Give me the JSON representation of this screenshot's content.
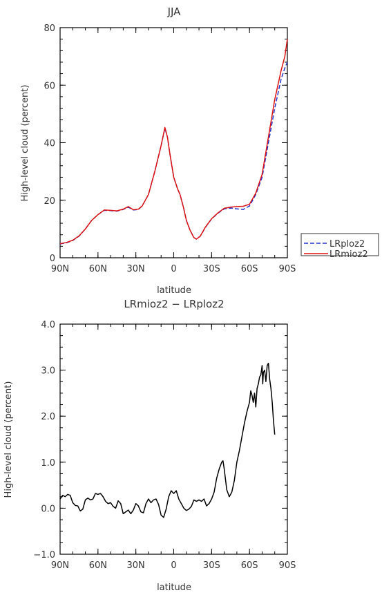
{
  "chart_data": [
    {
      "type": "line",
      "title": "JJA",
      "xlabel": "latitude",
      "ylabel": "High-level cloud (percent)",
      "xlim": [
        90,
        -90
      ],
      "ylim": [
        0,
        80
      ],
      "xticks": [
        {
          "v": 90,
          "label": "90N"
        },
        {
          "v": 60,
          "label": "60N"
        },
        {
          "v": 30,
          "label": "30N"
        },
        {
          "v": 0,
          "label": "0"
        },
        {
          "v": -30,
          "label": "30S"
        },
        {
          "v": -60,
          "label": "60S"
        },
        {
          "v": -90,
          "label": "90S"
        }
      ],
      "yticks": [
        {
          "v": 0,
          "label": "0"
        },
        {
          "v": 20,
          "label": "20"
        },
        {
          "v": 40,
          "label": "40"
        },
        {
          "v": 60,
          "label": "60"
        },
        {
          "v": 80,
          "label": "80"
        }
      ],
      "legend_position": "right",
      "series": [
        {
          "name": "LRploz2",
          "color": "#2233cc",
          "dash": "dashed",
          "points": [
            [
              90,
              4.8
            ],
            [
              85,
              5.2
            ],
            [
              80,
              6
            ],
            [
              75,
              7.5
            ],
            [
              70,
              10
            ],
            [
              65,
              13
            ],
            [
              60,
              15
            ],
            [
              55,
              16.5
            ],
            [
              50,
              16.4
            ],
            [
              45,
              16.2
            ],
            [
              40,
              16.8
            ],
            [
              36,
              17.6
            ],
            [
              32,
              16.6
            ],
            [
              28,
              16.8
            ],
            [
              25,
              18
            ],
            [
              20,
              22
            ],
            [
              15,
              30
            ],
            [
              10,
              39
            ],
            [
              7,
              45
            ],
            [
              5,
              42
            ],
            [
              3,
              36
            ],
            [
              0,
              28
            ],
            [
              -3,
              24
            ],
            [
              -5,
              22
            ],
            [
              -8,
              17
            ],
            [
              -10,
              13
            ],
            [
              -13,
              9.5
            ],
            [
              -16,
              7
            ],
            [
              -18,
              6.5
            ],
            [
              -21,
              7.5
            ],
            [
              -25,
              10.5
            ],
            [
              -30,
              13.5
            ],
            [
              -35,
              15.5
            ],
            [
              -40,
              17
            ],
            [
              -45,
              17.3
            ],
            [
              -50,
              17
            ],
            [
              -55,
              16.8
            ],
            [
              -60,
              18
            ],
            [
              -65,
              22
            ],
            [
              -70,
              28
            ],
            [
              -75,
              40
            ],
            [
              -80,
              52
            ],
            [
              -85,
              62
            ],
            [
              -88,
              66
            ],
            [
              -90,
              68
            ]
          ]
        },
        {
          "name": "LRmioz2",
          "color": "#dd1111",
          "dash": "solid",
          "points": [
            [
              90,
              4.9
            ],
            [
              85,
              5.3
            ],
            [
              80,
              6.1
            ],
            [
              75,
              7.6
            ],
            [
              70,
              10
            ],
            [
              65,
              13
            ],
            [
              60,
              15
            ],
            [
              55,
              16.6
            ],
            [
              50,
              16.5
            ],
            [
              45,
              16.3
            ],
            [
              40,
              16.9
            ],
            [
              36,
              17.8
            ],
            [
              32,
              16.7
            ],
            [
              28,
              16.9
            ],
            [
              25,
              18
            ],
            [
              20,
              22
            ],
            [
              15,
              30
            ],
            [
              10,
              39
            ],
            [
              7,
              45.3
            ],
            [
              5,
              42
            ],
            [
              3,
              36
            ],
            [
              0,
              28
            ],
            [
              -3,
              24
            ],
            [
              -5,
              22
            ],
            [
              -8,
              17
            ],
            [
              -10,
              13
            ],
            [
              -13,
              9.5
            ],
            [
              -16,
              7
            ],
            [
              -18,
              6.5
            ],
            [
              -21,
              7.5
            ],
            [
              -25,
              10.6
            ],
            [
              -30,
              13.6
            ],
            [
              -35,
              15.6
            ],
            [
              -40,
              17.2
            ],
            [
              -45,
              17.6
            ],
            [
              -50,
              17.8
            ],
            [
              -55,
              17.9
            ],
            [
              -60,
              18.6
            ],
            [
              -65,
              22.5
            ],
            [
              -70,
              29
            ],
            [
              -75,
              42
            ],
            [
              -80,
              55
            ],
            [
              -85,
              65
            ],
            [
              -88,
              70
            ],
            [
              -90,
              76
            ]
          ]
        }
      ]
    },
    {
      "type": "line",
      "title": "LRmioz2 − LRploz2",
      "xlabel": "latitude",
      "ylabel": "High-level cloud (percent)",
      "xlim": [
        90,
        -90
      ],
      "ylim": [
        -1.0,
        4.0
      ],
      "xticks": [
        {
          "v": 90,
          "label": "90N"
        },
        {
          "v": 60,
          "label": "60N"
        },
        {
          "v": 30,
          "label": "30N"
        },
        {
          "v": 0,
          "label": "0"
        },
        {
          "v": -30,
          "label": "30S"
        },
        {
          "v": -60,
          "label": "60S"
        },
        {
          "v": -90,
          "label": "90S"
        }
      ],
      "yticks": [
        {
          "v": -1.0,
          "label": "−1.0"
        },
        {
          "v": 0,
          "label": "0.0"
        },
        {
          "v": 1.0,
          "label": "1.0"
        },
        {
          "v": 2.0,
          "label": "2.0"
        },
        {
          "v": 3.0,
          "label": "3.0"
        },
        {
          "v": 4.0,
          "label": "4.0"
        }
      ],
      "series": [
        {
          "color": "#000000",
          "dash": "solid",
          "points": [
            [
              90,
              0.2
            ],
            [
              88,
              0.28
            ],
            [
              86,
              0.25
            ],
            [
              84,
              0.3
            ],
            [
              82,
              0.28
            ],
            [
              80,
              0.12
            ],
            [
              78,
              0.06
            ],
            [
              76,
              0.05
            ],
            [
              74,
              -0.06
            ],
            [
              72,
              -0.02
            ],
            [
              70,
              0.18
            ],
            [
              68,
              0.22
            ],
            [
              66,
              0.18
            ],
            [
              64,
              0.2
            ],
            [
              62,
              0.32
            ],
            [
              60,
              0.3
            ],
            [
              58,
              0.32
            ],
            [
              56,
              0.25
            ],
            [
              54,
              0.15
            ],
            [
              52,
              0.1
            ],
            [
              50,
              0.12
            ],
            [
              48,
              0.04
            ],
            [
              46,
              0.0
            ],
            [
              44,
              0.16
            ],
            [
              42,
              0.1
            ],
            [
              40,
              -0.12
            ],
            [
              38,
              -0.08
            ],
            [
              36,
              -0.04
            ],
            [
              34,
              -0.12
            ],
            [
              32,
              -0.04
            ],
            [
              30,
              0.1
            ],
            [
              28,
              0.05
            ],
            [
              26,
              -0.08
            ],
            [
              24,
              -0.1
            ],
            [
              22,
              0.1
            ],
            [
              20,
              0.2
            ],
            [
              18,
              0.12
            ],
            [
              16,
              0.18
            ],
            [
              14,
              0.2
            ],
            [
              12,
              0.08
            ],
            [
              10,
              -0.15
            ],
            [
              8,
              -0.2
            ],
            [
              6,
              -0.02
            ],
            [
              4,
              0.25
            ],
            [
              2,
              0.38
            ],
            [
              0,
              0.32
            ],
            [
              -2,
              0.38
            ],
            [
              -4,
              0.2
            ],
            [
              -6,
              0.1
            ],
            [
              -8,
              0.0
            ],
            [
              -10,
              -0.05
            ],
            [
              -12,
              -0.02
            ],
            [
              -14,
              0.04
            ],
            [
              -16,
              0.18
            ],
            [
              -18,
              0.15
            ],
            [
              -20,
              0.18
            ],
            [
              -22,
              0.15
            ],
            [
              -24,
              0.2
            ],
            [
              -26,
              0.05
            ],
            [
              -28,
              0.1
            ],
            [
              -30,
              0.2
            ],
            [
              -32,
              0.35
            ],
            [
              -34,
              0.65
            ],
            [
              -36,
              0.85
            ],
            [
              -38,
              1.0
            ],
            [
              -39,
              1.03
            ],
            [
              -40,
              0.85
            ],
            [
              -42,
              0.4
            ],
            [
              -44,
              0.25
            ],
            [
              -46,
              0.35
            ],
            [
              -48,
              0.6
            ],
            [
              -50,
              1.0
            ],
            [
              -52,
              1.25
            ],
            [
              -54,
              1.55
            ],
            [
              -56,
              1.85
            ],
            [
              -58,
              2.1
            ],
            [
              -60,
              2.3
            ],
            [
              -61,
              2.55
            ],
            [
              -62,
              2.45
            ],
            [
              -63,
              2.3
            ],
            [
              -64,
              2.5
            ],
            [
              -65,
              2.2
            ],
            [
              -66,
              2.6
            ],
            [
              -67,
              2.7
            ],
            [
              -68,
              2.85
            ],
            [
              -69,
              2.9
            ],
            [
              -70,
              3.1
            ],
            [
              -70.5,
              2.7
            ],
            [
              -71,
              2.95
            ],
            [
              -72,
              3.0
            ],
            [
              -73,
              2.75
            ],
            [
              -74,
              3.1
            ],
            [
              -75,
              3.15
            ],
            [
              -76,
              2.8
            ],
            [
              -77,
              2.6
            ],
            [
              -78,
              2.3
            ],
            [
              -79,
              1.9
            ],
            [
              -80,
              1.6
            ]
          ]
        }
      ]
    }
  ]
}
